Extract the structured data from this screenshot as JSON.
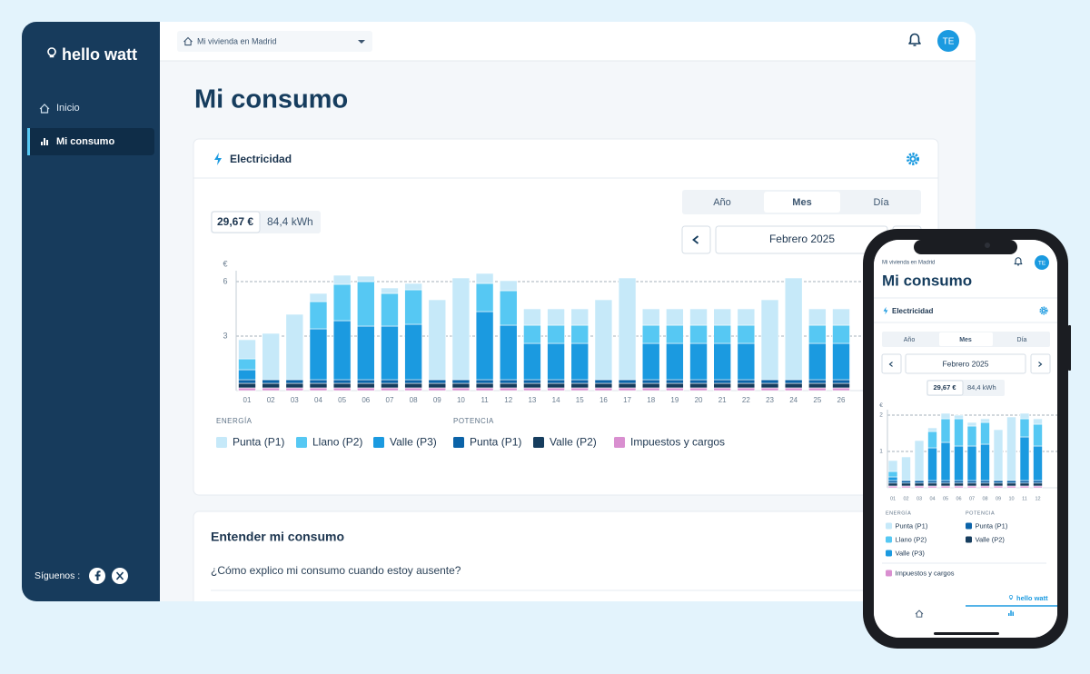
{
  "sidebar": {
    "brand": "hello watt",
    "nav": [
      "Inicio",
      "Mi consumo"
    ],
    "social_label": "Síguenos :"
  },
  "topbar": {
    "home_selector": "Mi vivienda en Madrid",
    "avatar": "TE"
  },
  "page_title": "Mi consumo",
  "card": {
    "title": "Electricidad",
    "tabs": [
      "Año",
      "Mes",
      "Día"
    ],
    "period": "Febrero 2025",
    "cost": "29,67 €",
    "energy": "84,4 kWh"
  },
  "understand": {
    "title": "Entender mi consumo",
    "question": "¿Cómo explico mi consumo cuando estoy ausente?"
  },
  "phone": {
    "home_selector": "Mi vivienda en Madrid",
    "avatar": "TE",
    "page_title": "Mi consumo",
    "card_title": "Electricidad",
    "tabs": [
      "Año",
      "Mes",
      "Día"
    ],
    "period": "Febrero 2025",
    "cost": "29,67 €",
    "energy": "84,4 kWh",
    "brand": "hello watt"
  },
  "chart_data": [
    {
      "type": "stacked_bar",
      "y_label": "€",
      "legend_group_titles": [
        "ENERGÍA",
        "POTENCIA"
      ],
      "categories": [
        "01",
        "02",
        "03",
        "04",
        "05",
        "06",
        "07",
        "08",
        "09",
        "10",
        "11",
        "12",
        "13",
        "14",
        "15",
        "16",
        "17",
        "18",
        "19",
        "20",
        "21",
        "22",
        "23",
        "24",
        "25",
        "26"
      ],
      "ylim": [
        0,
        6.5
      ],
      "yticks": [
        3,
        6
      ],
      "grid": true,
      "series": [
        {
          "name": "Punta (P1)",
          "color": "#c6e9f9",
          "values": [
            1.05,
            2.55,
            3.6,
            0.45,
            0.5,
            0.3,
            0.3,
            0.35,
            4.4,
            5.6,
            0.55,
            0.55,
            0.9,
            0.9,
            0.9,
            4.4,
            5.6,
            0.9,
            0.9,
            0.9,
            0.9,
            0.9,
            4.4,
            5.6,
            0.9,
            0.9
          ]
        },
        {
          "name": "Llano (P2)",
          "color": "#56c8f3",
          "values": [
            0.6,
            0,
            0,
            1.5,
            2.0,
            2.45,
            1.8,
            1.9,
            0,
            0,
            1.55,
            1.9,
            1.0,
            1.0,
            1.0,
            0,
            0,
            1.0,
            1.0,
            1.0,
            1.0,
            1.0,
            0,
            0,
            1.0,
            1.0
          ]
        },
        {
          "name": "Valle (P3)",
          "color": "#1b9ae0",
          "values": [
            0.55,
            0,
            0,
            2.8,
            3.25,
            2.95,
            2.95,
            3.05,
            0,
            0,
            3.75,
            3.0,
            2.0,
            2.0,
            2.0,
            0,
            0,
            2.0,
            2.0,
            2.0,
            2.0,
            2.0,
            0,
            0,
            2.0,
            2.0
          ]
        },
        {
          "name": "Punta (P1)",
          "color": "#0b63a8",
          "values": [
            0.2,
            0.2,
            0.2,
            0.2,
            0.2,
            0.2,
            0.2,
            0.2,
            0.2,
            0.2,
            0.2,
            0.2,
            0.2,
            0.2,
            0.2,
            0.2,
            0.2,
            0.2,
            0.2,
            0.2,
            0.2,
            0.2,
            0.2,
            0.2,
            0.2,
            0.2
          ]
        },
        {
          "name": "Valle (P2)",
          "color": "#163d5e",
          "values": [
            0.25,
            0.25,
            0.25,
            0.25,
            0.25,
            0.25,
            0.25,
            0.25,
            0.25,
            0.25,
            0.25,
            0.25,
            0.25,
            0.25,
            0.25,
            0.25,
            0.25,
            0.25,
            0.25,
            0.25,
            0.25,
            0.25,
            0.25,
            0.25,
            0.25,
            0.25
          ]
        },
        {
          "name": "Impuestos y cargos",
          "color": "#d98fd0",
          "values": [
            0.15,
            0.15,
            0.15,
            0.15,
            0.15,
            0.15,
            0.15,
            0.15,
            0.15,
            0.15,
            0.15,
            0.15,
            0.15,
            0.15,
            0.15,
            0.15,
            0.15,
            0.15,
            0.15,
            0.15,
            0.15,
            0.15,
            0.15,
            0.15,
            0.15,
            0.15
          ]
        }
      ]
    },
    {
      "type": "stacked_bar",
      "y_label": "€",
      "legend_group_titles": [
        "ENERGÍA",
        "POTENCIA"
      ],
      "categories": [
        "01",
        "02",
        "03",
        "04",
        "05",
        "06",
        "07",
        "08",
        "09",
        "10",
        "11",
        "12"
      ],
      "ylim": [
        0,
        2.1
      ],
      "yticks": [
        1,
        2
      ],
      "grid": true,
      "series": [
        {
          "name": "Punta (P1)",
          "color": "#c6e9f9",
          "values": [
            0.3,
            0.65,
            1.1,
            0.1,
            0.15,
            0.1,
            0.1,
            0.1,
            1.4,
            1.75,
            0.15,
            0.15
          ]
        },
        {
          "name": "Llano (P2)",
          "color": "#56c8f3",
          "values": [
            0.15,
            0,
            0,
            0.45,
            0.65,
            0.75,
            0.55,
            0.6,
            0,
            0,
            0.5,
            0.6
          ]
        },
        {
          "name": "Valle (P3)",
          "color": "#1b9ae0",
          "values": [
            0.1,
            0,
            0,
            0.9,
            1.05,
            0.95,
            0.95,
            1.0,
            0,
            0,
            1.2,
            0.95
          ]
        },
        {
          "name": "Punta (P1)",
          "color": "#0b63a8",
          "values": [
            0.07,
            0.07,
            0.07,
            0.07,
            0.07,
            0.07,
            0.07,
            0.07,
            0.07,
            0.07,
            0.07,
            0.07
          ]
        },
        {
          "name": "Valle (P2)",
          "color": "#163d5e",
          "values": [
            0.08,
            0.08,
            0.08,
            0.08,
            0.08,
            0.08,
            0.08,
            0.08,
            0.08,
            0.08,
            0.08,
            0.08
          ]
        },
        {
          "name": "Impuestos y cargos",
          "color": "#d98fd0",
          "values": [
            0.05,
            0.05,
            0.05,
            0.05,
            0.05,
            0.05,
            0.05,
            0.05,
            0.05,
            0.05,
            0.05,
            0.05
          ]
        }
      ]
    }
  ]
}
